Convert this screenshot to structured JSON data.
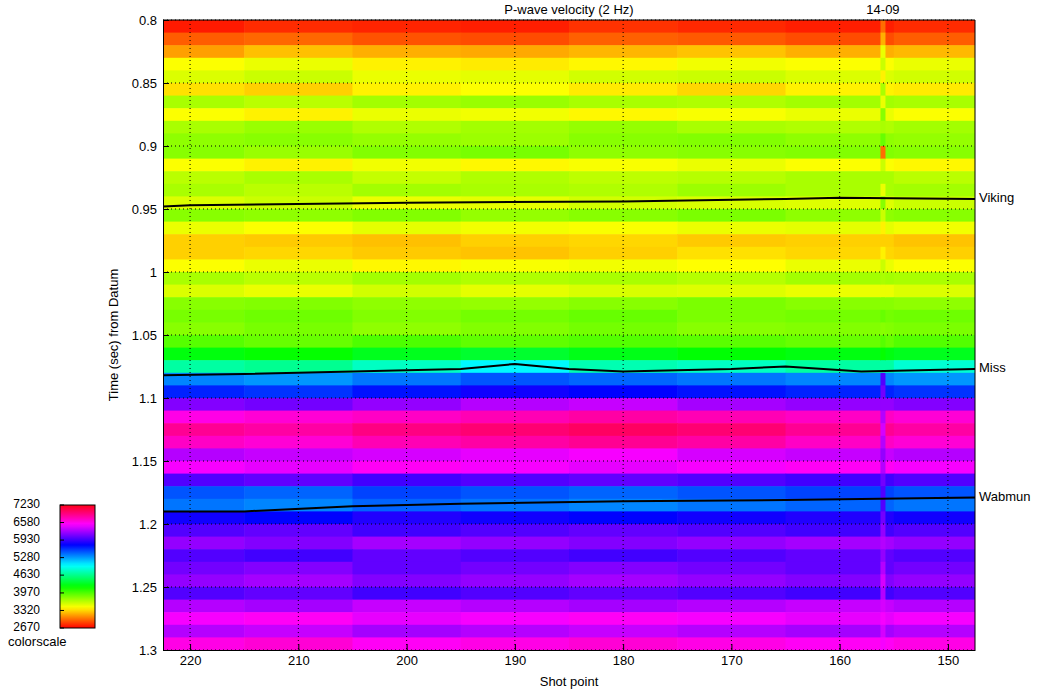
{
  "chart_data": {
    "type": "heatmap",
    "title": "P-wave velocity (2 Hz)",
    "xlabel": "Shot point",
    "ylabel": "Time (sec) from Datum",
    "xlim": [
      222.5,
      147.5
    ],
    "xticks": [
      220,
      210,
      200,
      190,
      180,
      170,
      160,
      150
    ],
    "ylim": [
      0.8,
      1.3
    ],
    "yticks": [
      0.8,
      0.85,
      0.9,
      0.95,
      1,
      1.05,
      1.1,
      1.15,
      1.2,
      1.25,
      1.3
    ],
    "grid": true,
    "x": [
      220,
      210,
      200,
      190,
      180,
      170,
      160,
      150
    ],
    "y": [
      0.805,
      0.815,
      0.825,
      0.835,
      0.845,
      0.855,
      0.865,
      0.875,
      0.885,
      0.895,
      0.905,
      0.915,
      0.925,
      0.935,
      0.945,
      0.955,
      0.965,
      0.975,
      0.985,
      0.995,
      1.005,
      1.015,
      1.025,
      1.035,
      1.045,
      1.055,
      1.065,
      1.075,
      1.085,
      1.095,
      1.105,
      1.115,
      1.125,
      1.135,
      1.145,
      1.155,
      1.165,
      1.175,
      1.185,
      1.195,
      1.205,
      1.215,
      1.225,
      1.235,
      1.245,
      1.255,
      1.265,
      1.275,
      1.285,
      1.295
    ],
    "values": [
      [
        2750,
        2800,
        2780,
        2760,
        2820,
        2790,
        2760,
        2800
      ],
      [
        2950,
        2980,
        2920,
        2900,
        2960,
        2940,
        2900,
        2950
      ],
      [
        3150,
        3250,
        3200,
        3180,
        3220,
        3260,
        3200,
        3230
      ],
      [
        3450,
        3500,
        3400,
        3380,
        3420,
        3480,
        3450,
        3500
      ],
      [
        3550,
        3600,
        3500,
        3520,
        3580,
        3600,
        3550,
        3580
      ],
      [
        3350,
        3300,
        3400,
        3450,
        3380,
        3320,
        3400,
        3380
      ],
      [
        3700,
        3650,
        3720,
        3750,
        3700,
        3680,
        3720,
        3700
      ],
      [
        3450,
        3400,
        3500,
        3480,
        3420,
        3460,
        3500,
        3450
      ],
      [
        3700,
        3750,
        3680,
        3720,
        3760,
        3700,
        3680,
        3720
      ],
      [
        3780,
        3800,
        3760,
        3740,
        3800,
        3820,
        3780,
        3760
      ],
      [
        3800,
        3750,
        3820,
        3850,
        3780,
        3800,
        3820,
        3800
      ],
      [
        3450,
        3400,
        3480,
        3420,
        3460,
        3500,
        3450,
        3420
      ],
      [
        3650,
        3700,
        3620,
        3680,
        3640,
        3660,
        3700,
        3650
      ],
      [
        3700,
        3650,
        3720,
        3700,
        3680,
        3740,
        3700,
        3720
      ],
      [
        3550,
        3600,
        3500,
        3520,
        3580,
        3560,
        3540,
        3600
      ],
      [
        3800,
        3780,
        3820,
        3760,
        3800,
        3840,
        3780,
        3800
      ],
      [
        3500,
        3450,
        3520,
        3480,
        3460,
        3500,
        3520,
        3480
      ],
      [
        3300,
        3280,
        3250,
        3300,
        3320,
        3280,
        3300,
        3260
      ],
      [
        3300,
        3320,
        3280,
        3260,
        3300,
        3350,
        3320,
        3300
      ],
      [
        3450,
        3500,
        3420,
        3460,
        3480,
        3440,
        3500,
        3450
      ],
      [
        3700,
        3650,
        3720,
        3680,
        3700,
        3660,
        3720,
        3700
      ],
      [
        3550,
        3500,
        3580,
        3520,
        3560,
        3540,
        3500,
        3550
      ],
      [
        3800,
        3820,
        3780,
        3760,
        3800,
        3840,
        3800,
        3780
      ],
      [
        3850,
        3880,
        3820,
        3860,
        3900,
        3840,
        3860,
        3880
      ],
      [
        3800,
        3850,
        3780,
        3820,
        3860,
        3800,
        3820,
        3840
      ],
      [
        3950,
        3900,
        3980,
        3920,
        3960,
        3940,
        3900,
        3960
      ],
      [
        4250,
        4200,
        4300,
        4350,
        4280,
        4220,
        4260,
        4300
      ],
      [
        4700,
        4650,
        4800,
        5000,
        4750,
        4800,
        4700,
        4850
      ],
      [
        5350,
        5300,
        5400,
        5500,
        5450,
        5400,
        5350,
        5300
      ],
      [
        5650,
        5600,
        5700,
        5800,
        5750,
        5700,
        5650,
        5600
      ],
      [
        6150,
        6100,
        6200,
        6300,
        6350,
        6250,
        6200,
        6150
      ],
      [
        6600,
        6650,
        6700,
        6750,
        6800,
        6750,
        6700,
        6650
      ],
      [
        6850,
        6800,
        6900,
        6950,
        7000,
        6950,
        6850,
        6800
      ],
      [
        6700,
        6650,
        6750,
        6800,
        6850,
        6800,
        6700,
        6650
      ],
      [
        6300,
        6350,
        6400,
        6450,
        6500,
        6400,
        6350,
        6300
      ],
      [
        6500,
        6450,
        6550,
        6500,
        6450,
        6500,
        6550,
        6500
      ],
      [
        6000,
        6050,
        5950,
        6000,
        6050,
        6000,
        5950,
        6000
      ],
      [
        5500,
        5450,
        5550,
        5500,
        5450,
        5500,
        5550,
        5500
      ],
      [
        5400,
        5350,
        5450,
        5400,
        5350,
        5400,
        5450,
        5400
      ],
      [
        5800,
        5750,
        5850,
        5800,
        5750,
        5800,
        5850,
        5800
      ],
      [
        6000,
        6050,
        5950,
        6000,
        6050,
        6000,
        5950,
        6000
      ],
      [
        6200,
        6150,
        6250,
        6200,
        6150,
        6200,
        6250,
        6200
      ],
      [
        6000,
        5950,
        6050,
        6000,
        5950,
        6000,
        6050,
        6000
      ],
      [
        6100,
        6150,
        6050,
        6100,
        6150,
        6100,
        6050,
        6100
      ],
      [
        6200,
        6250,
        6150,
        6200,
        6250,
        6200,
        6150,
        6200
      ],
      [
        6000,
        6050,
        5950,
        6000,
        6050,
        6000,
        5950,
        6000
      ],
      [
        6300,
        6250,
        6350,
        6300,
        6250,
        6300,
        6350,
        6300
      ],
      [
        6500,
        6550,
        6450,
        6500,
        6550,
        6500,
        6450,
        6500
      ],
      [
        6300,
        6350,
        6250,
        6300,
        6350,
        6300,
        6250,
        6300
      ],
      [
        6600,
        6650,
        6550,
        6600,
        6650,
        6600,
        6550,
        6600
      ]
    ],
    "colorbar": {
      "label": "colorscale",
      "lim": [
        2670,
        7230
      ],
      "ticks": [
        2670,
        3320,
        3970,
        4630,
        5280,
        5930,
        6580,
        7230
      ]
    },
    "horizons": [
      {
        "name": "Viking",
        "x": [
          222.5,
          220,
          200,
          180,
          165,
          160,
          147.5
        ],
        "values": [
          0.948,
          0.947,
          0.945,
          0.944,
          0.942,
          0.941,
          0.942
        ]
      },
      {
        "name": "Miss",
        "x": [
          222.5,
          215,
          205,
          195,
          190,
          185,
          180,
          170,
          165,
          158,
          147.5
        ],
        "values": [
          1.082,
          1.081,
          1.079,
          1.077,
          1.073,
          1.077,
          1.079,
          1.077,
          1.075,
          1.079,
          1.077
        ]
      },
      {
        "name": "Wabmun",
        "x": [
          222.5,
          215,
          205,
          195,
          180,
          165,
          147.5
        ],
        "values": [
          1.19,
          1.19,
          1.186,
          1.184,
          1.182,
          1.181,
          1.179
        ]
      }
    ],
    "well": {
      "name": "14-09",
      "x": 156,
      "values": [
        3000,
        3200,
        3500,
        3600,
        3400,
        3700,
        3500,
        3800,
        3700,
        3900,
        3000,
        3600,
        3700,
        3500,
        3800,
        3600,
        3400,
        3300,
        3400,
        3600,
        3700,
        3500,
        3800,
        3900,
        3800,
        3950,
        4200,
        4700,
        6000,
        6100,
        6200,
        6300,
        6400,
        6300,
        6200,
        6300,
        6100,
        6000,
        6000,
        6100,
        6200,
        6300,
        6200,
        6300,
        6400,
        6300,
        6400,
        6500,
        6400,
        6500
      ]
    }
  }
}
